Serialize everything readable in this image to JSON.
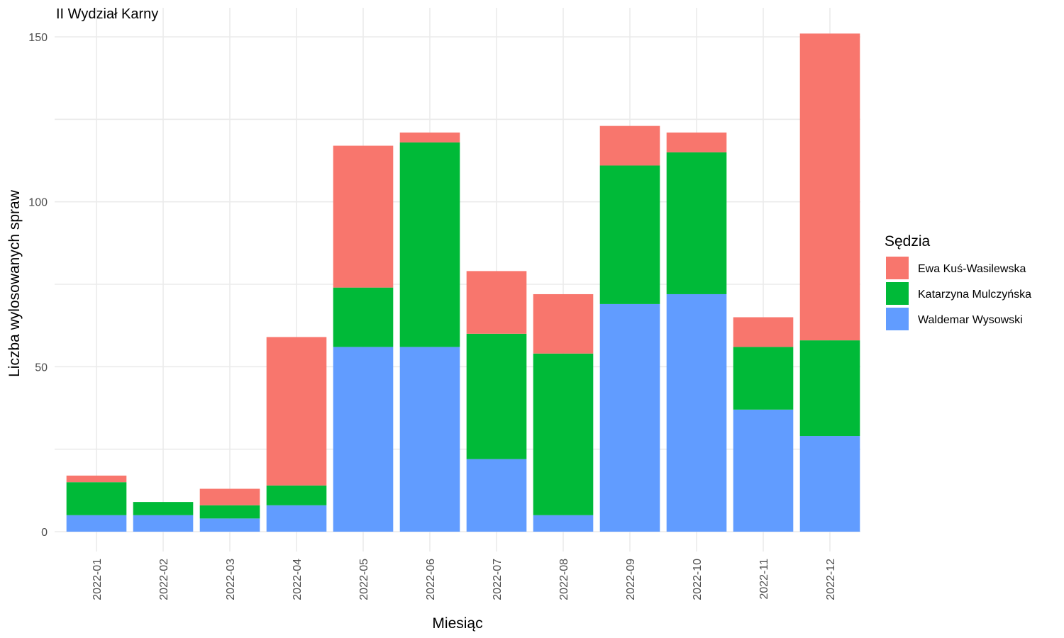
{
  "chart_data": {
    "type": "bar",
    "stacked": true,
    "title": "II Wydział Karny",
    "xlabel": "Miesiąc",
    "ylabel": "Liczba wylosowanych spraw",
    "ylim": [
      0,
      155
    ],
    "yticks": [
      0,
      50,
      100,
      150
    ],
    "grid": true,
    "legend_title": "Sędzia",
    "legend_position": "right",
    "categories": [
      "2022-01",
      "2022-02",
      "2022-03",
      "2022-04",
      "2022-05",
      "2022-06",
      "2022-07",
      "2022-08",
      "2022-09",
      "2022-10",
      "2022-11",
      "2022-12"
    ],
    "series": [
      {
        "name": "Waldemar Wysowski",
        "color": "#619CFF",
        "values": [
          5,
          5,
          4,
          8,
          56,
          56,
          22,
          5,
          69,
          72,
          37,
          29
        ]
      },
      {
        "name": "Katarzyna Mulczyńska",
        "color": "#00BA38",
        "values": [
          10,
          4,
          4,
          6,
          18,
          62,
          38,
          49,
          42,
          43,
          19,
          29
        ]
      },
      {
        "name": "Ewa Kuś-Wasilewska",
        "color": "#F8766D",
        "values": [
          2,
          0,
          5,
          45,
          43,
          3,
          19,
          18,
          12,
          6,
          9,
          93
        ]
      }
    ],
    "legend_order": [
      "Ewa Kuś-Wasilewska",
      "Katarzyna Mulczyńska",
      "Waldemar Wysowski"
    ]
  }
}
